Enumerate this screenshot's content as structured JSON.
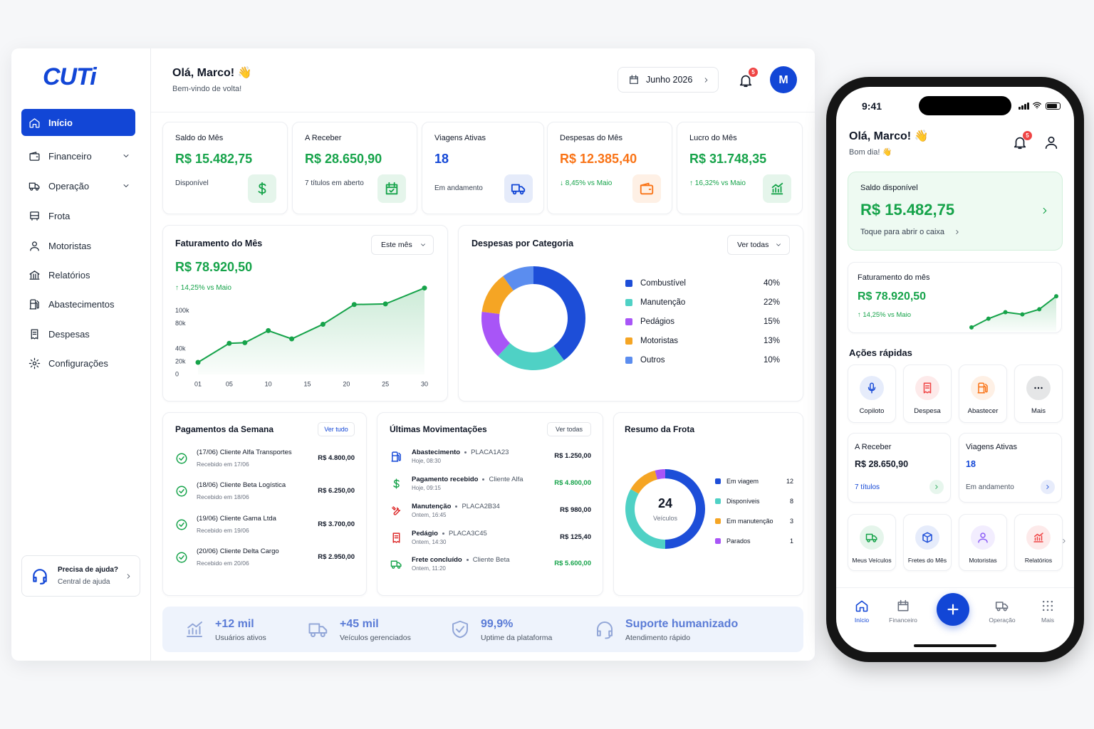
{
  "brand": "CUTi",
  "sidebar": {
    "nav": [
      {
        "label": "Início",
        "active": true
      },
      {
        "label": "Financeiro",
        "expandable": true
      },
      {
        "label": "Operação",
        "expandable": true
      },
      {
        "label": "Frota"
      },
      {
        "label": "Motoristas"
      },
      {
        "label": "Relatórios"
      },
      {
        "label": "Abastecimentos"
      },
      {
        "label": "Despesas"
      },
      {
        "label": "Configurações"
      }
    ],
    "help": {
      "title": "Precisa de ajuda?",
      "subtitle": "Central de ajuda"
    }
  },
  "header": {
    "greeting": "Olá, Marco! 👋",
    "subtitle": "Bem-vindo de volta!",
    "period": "Junho 2026",
    "notifications": 5,
    "avatar": "M"
  },
  "kpis": [
    {
      "label": "Saldo do Mês",
      "value": "R$ 15.482,75",
      "note": "Disponível",
      "color": "#16a34a",
      "note_color": "#374151"
    },
    {
      "label": "A Receber",
      "value": "R$ 28.650,90",
      "note": "7 títulos em aberto",
      "color": "#16a34a",
      "note_color": "#374151"
    },
    {
      "label": "Viagens Ativas",
      "value": "18",
      "note": "Em andamento",
      "color": "#1246d6",
      "note_color": "#374151"
    },
    {
      "label": "Despesas do Mês",
      "value": "R$ 12.385,40",
      "note": "↓ 8,45% vs Maio",
      "color": "#f97316",
      "note_color": "#16a34a"
    },
    {
      "label": "Lucro do Mês",
      "value": "R$ 31.748,35",
      "note": "↑ 16,32% vs Maio",
      "color": "#16a34a",
      "note_color": "#16a34a"
    }
  ],
  "revenue_chart": {
    "type": "line",
    "title": "Faturamento do Mês",
    "filter": "Este mês",
    "total": "R$ 78.920,50",
    "change": "↑ 14,25% vs Maio",
    "color": "#16a34a",
    "x": [
      1,
      5,
      7,
      10,
      13,
      17,
      21,
      25,
      30
    ],
    "values": [
      19000,
      49000,
      50000,
      69000,
      56000,
      79000,
      110000,
      111000,
      136000
    ],
    "xlim": [
      1,
      30
    ],
    "ylim": [
      0,
      140000
    ],
    "xticks": [
      {
        "value": 1,
        "label": "01"
      },
      {
        "value": 5,
        "label": "05"
      },
      10,
      15,
      20,
      25,
      30
    ],
    "yticks": [
      0,
      {
        "value": 20000,
        "label": "20k"
      },
      {
        "value": 40000,
        "label": "40k"
      },
      {
        "value": 80000,
        "label": "80k"
      },
      {
        "value": 100000,
        "label": "100k"
      }
    ]
  },
  "expense_chart": {
    "type": "donut",
    "title": "Despesas por Categoria",
    "filter": "Ver todas",
    "categories": [
      "Combustível",
      "Manutenção",
      "Pedágios",
      "Motoristas",
      "Outros"
    ],
    "values": [
      40,
      22,
      15,
      13,
      10
    ],
    "value_labels": [
      "40%",
      "22%",
      "15%",
      "13%",
      "10%"
    ],
    "colors": [
      "#1d4ed8",
      "#4fd1c5",
      "#a855f7",
      "#f5a524",
      "#5b8def"
    ]
  },
  "payments": {
    "title": "Pagamentos da Semana",
    "action": "Ver tudo",
    "items": [
      {
        "title": "(17/06) Cliente Alfa Transportes",
        "subtitle": "Recebido em 17/06",
        "amount": "R$ 4.800,00"
      },
      {
        "title": "(18/06) Cliente Beta Logística",
        "subtitle": "Recebido em 18/06",
        "amount": "R$ 6.250,00"
      },
      {
        "title": "(19/06) Cliente Gama Ltda",
        "subtitle": "Recebido em 19/06",
        "amount": "R$ 3.700,00"
      },
      {
        "title": "(20/06) Cliente Delta Cargo",
        "subtitle": "Recebido em 20/06",
        "amount": "R$ 2.950,00"
      }
    ]
  },
  "movements": {
    "title": "Últimas Movimentações",
    "action": "Ver todas",
    "items": [
      {
        "title": "Abastecimento",
        "ref": "PLACA1A23",
        "time": "Hoje, 08:30",
        "amount": "R$ 1.250,00",
        "color": "#111827"
      },
      {
        "title": "Pagamento recebido",
        "ref": "Cliente Alfa",
        "time": "Hoje, 09:15",
        "amount": "R$ 4.800,00",
        "color": "#16a34a"
      },
      {
        "title": "Manutenção",
        "ref": "PLACA2B34",
        "time": "Ontem, 16:45",
        "amount": "R$ 980,00",
        "color": "#111827"
      },
      {
        "title": "Pedágio",
        "ref": "PLACA3C45",
        "time": "Ontem, 14:30",
        "amount": "R$ 125,40",
        "color": "#111827"
      },
      {
        "title": "Frete concluído",
        "ref": "Cliente Beta",
        "time": "Ontem, 11:20",
        "amount": "R$ 5.600,00",
        "color": "#16a34a"
      }
    ]
  },
  "fleet": {
    "type": "donut",
    "title": "Resumo da Frota",
    "total": 24,
    "total_label": "Veículos",
    "categories": [
      "Em viagem",
      "Disponíveis",
      "Em manutenção",
      "Parados"
    ],
    "values": [
      12,
      8,
      3,
      1
    ],
    "colors": [
      "#1d4ed8",
      "#4fd1c5",
      "#f5a524",
      "#a855f7"
    ]
  },
  "stats": [
    {
      "value": "+12 mil",
      "label": "Usuários ativos"
    },
    {
      "value": "+45 mil",
      "label": "Veículos gerenciados"
    },
    {
      "value": "99,9%",
      "label": "Uptime da plataforma"
    },
    {
      "value": "Suporte humanizado",
      "label": "Atendimento rápido"
    }
  ],
  "phone": {
    "time": "9:41",
    "greeting": "Olá, Marco! 👋",
    "subtitle": "Bom dia! 👋",
    "notifications": 5,
    "balance": {
      "label": "Saldo disponível",
      "value": "R$ 15.482,75",
      "action": "Toque para abrir o caixa"
    },
    "revenue": {
      "type": "line",
      "title": "Faturamento do mês",
      "total": "R$ 78.920,50",
      "change": "↑ 14,25% vs Maio",
      "color": "#16a34a",
      "values": [
        6,
        18,
        27,
        24,
        31,
        49
      ],
      "ylim": [
        0,
        55
      ]
    },
    "quick_title": "Ações rápidas",
    "quick_actions": [
      {
        "label": "Copiloto",
        "color": "#1d4ed8"
      },
      {
        "label": "Despesa",
        "color": "#ef4444"
      },
      {
        "label": "Abastecer",
        "color": "#f97316"
      },
      {
        "label": "Mais",
        "color": "#111827"
      }
    ],
    "cards": [
      {
        "label": "A Receber",
        "value": "R$ 28.650,90",
        "note": "7 títulos",
        "value_color": "#111827",
        "note_color": "#1246d6",
        "color": "#16a34a"
      },
      {
        "label": "Viagens Ativas",
        "value": "18",
        "note": "Em andamento",
        "value_color": "#1246d6",
        "note_color": "#4b5563",
        "color": "#1246d6"
      }
    ],
    "shortcuts": [
      {
        "label": "Meus Veículos",
        "color": "#16a34a"
      },
      {
        "label": "Fretes do Mês",
        "color": "#1d4ed8"
      },
      {
        "label": "Motoristas",
        "color": "#8b5cf6"
      },
      {
        "label": "Relatórios",
        "color": "#ef4444"
      }
    ],
    "tabs": [
      {
        "label": "Início",
        "active": true
      },
      {
        "label": "Financeiro"
      },
      {
        "label": "Operação"
      },
      {
        "label": "Mais"
      }
    ]
  }
}
